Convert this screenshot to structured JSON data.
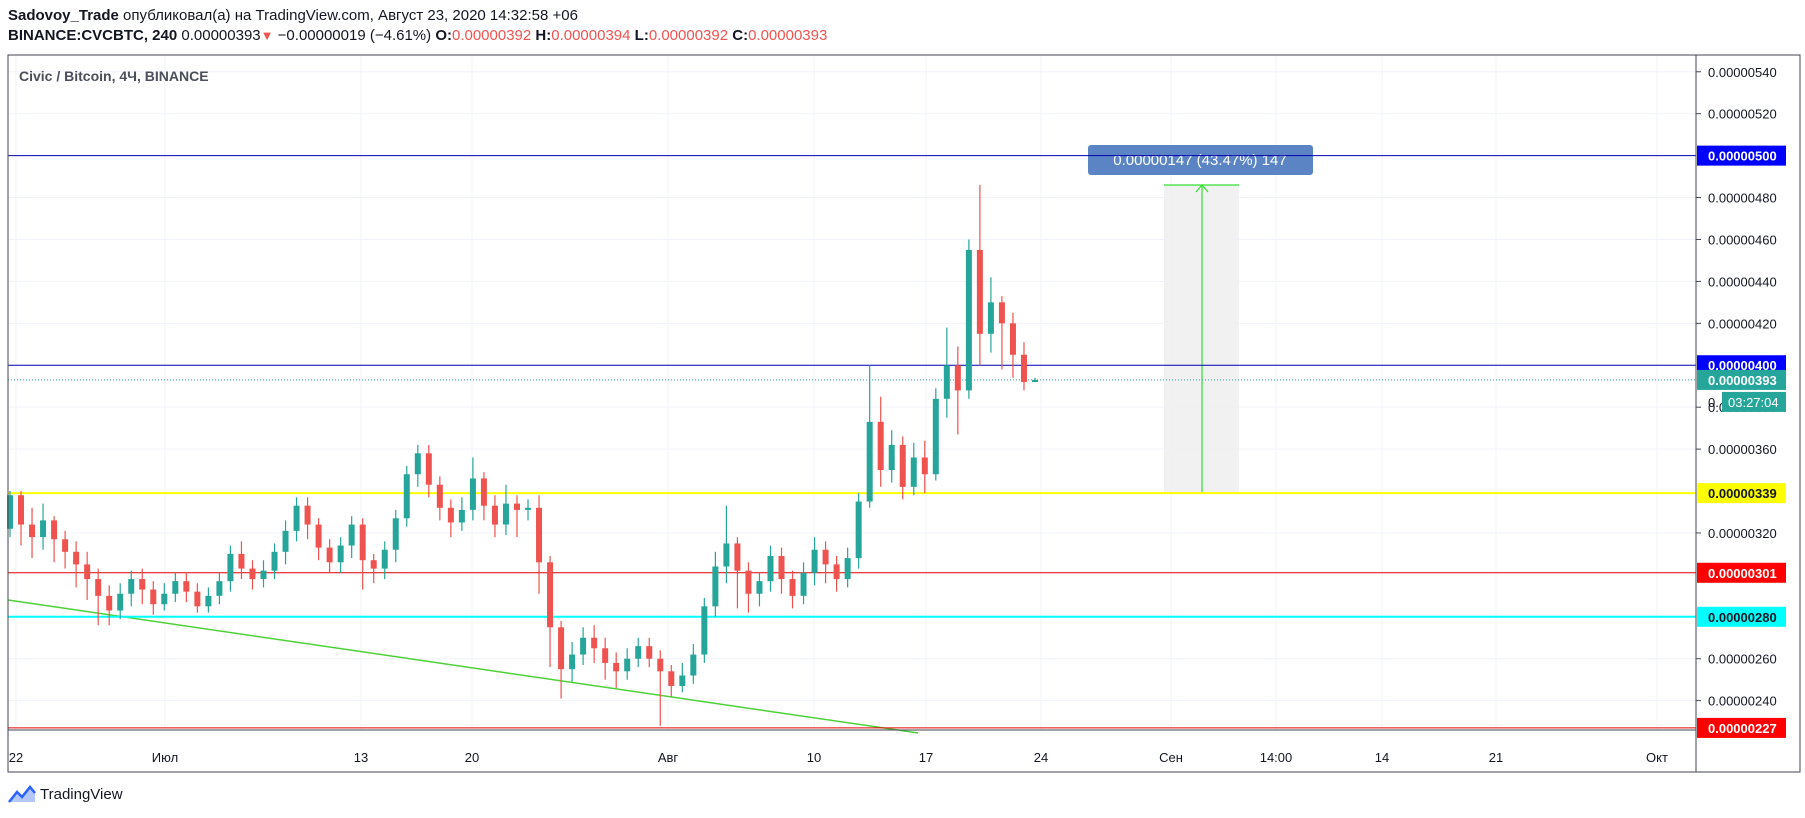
{
  "header": {
    "author": "Sadovoy_Trade",
    "published_text": " опубликовал(а) на TradingView.com, Август 23, 2020 14:32:58 +06",
    "symbol": "BINANCE:CVCBTC, 240",
    "last": "0.00000393",
    "change_arrow": "▼",
    "change": "−0.00000019 (−4.61%)",
    "o_label": "O:",
    "o_value": "0.00000392",
    "h_label": "H:",
    "h_value": "0.00000394",
    "l_label": "L:",
    "l_value": "0.00000392",
    "c_label": "C:",
    "c_value": "0.00000393"
  },
  "footer": {
    "brand": "TradingView",
    "logo_icon": "tradingview-logo-icon"
  },
  "chart_data": {
    "type": "candlestick",
    "title": "Civic / Bitcoin, 4Ч, BINANCE",
    "ylim": [
      2.26e-06,
      5.48e-06
    ],
    "y_ticks": [
      {
        "value": 5.4e-06,
        "label": "0.00000540"
      },
      {
        "value": 5.2e-06,
        "label": "0.00000520"
      },
      {
        "value": 4.8e-06,
        "label": "0.00000480"
      },
      {
        "value": 4.6e-06,
        "label": "0.00000460"
      },
      {
        "value": 4.4e-06,
        "label": "0.00000440"
      },
      {
        "value": 4.2e-06,
        "label": "0.00000420"
      },
      {
        "value": 3.8e-06,
        "label": "0.00000380"
      },
      {
        "value": 3.6e-06,
        "label": "0.00000360"
      },
      {
        "value": 3.2e-06,
        "label": "0.00000320"
      },
      {
        "value": 2.6e-06,
        "label": "0.00000260"
      },
      {
        "value": 2.4e-06,
        "label": "0.00000240"
      }
    ],
    "x_ticks": [
      "22",
      "Июл",
      "13",
      "20",
      "Авг",
      "10",
      "17",
      "24",
      "Сен",
      "14:00",
      "14",
      "21",
      "Окт"
    ],
    "horizontal_levels": [
      {
        "value": 5e-06,
        "label": "0.00000500",
        "color": "#0000b0",
        "label_bg": "#0000ff",
        "label_color": "#ffffff",
        "width": 1
      },
      {
        "value": 4e-06,
        "label": "0.00000400",
        "color": "#0000b0",
        "label_bg": "#0000ff",
        "label_color": "#ffffff",
        "width": 1
      },
      {
        "value": 3.39e-06,
        "label": "0.00000339",
        "color": "#ffff00",
        "label_bg": "#ffff00",
        "label_color": "#131722",
        "width": 2
      },
      {
        "value": 3.01e-06,
        "label": "0.00000301",
        "color": "#e00000",
        "label_bg": "#ff0000",
        "label_color": "#ffffff",
        "width": 1
      },
      {
        "value": 2.8e-06,
        "label": "0.00000280",
        "color": "#00ffff",
        "label_bg": "#00ffff",
        "label_color": "#131722",
        "width": 2
      },
      {
        "value": 2.27e-06,
        "label": "0.00000227",
        "color": "#e00000",
        "label_bg": "#ff0000",
        "label_color": "#ffffff",
        "width": 1
      }
    ],
    "last_price": {
      "value": 3.93e-06,
      "label": "0.00000393",
      "countdown": "03:27:04",
      "color": "#26a69a",
      "partial_tick": "0."
    },
    "measure": {
      "text": "0.00000147 (43.47%) 147",
      "from": 3.39e-06,
      "to": 4.86e-06
    },
    "trendline_color": "#4cd137",
    "up_color": "#26a69a",
    "down_color": "#ef5350",
    "candles": [
      [
        3.22e-06,
        3.38e-06,
        3.4e-06,
        3.18e-06
      ],
      [
        3.38e-06,
        3.24e-06,
        3.4e-06,
        3.14e-06
      ],
      [
        3.24e-06,
        3.18e-06,
        3.32e-06,
        3.08e-06
      ],
      [
        3.18e-06,
        3.26e-06,
        3.34e-06,
        3.12e-06
      ],
      [
        3.26e-06,
        3.17e-06,
        3.28e-06,
        3.06e-06
      ],
      [
        3.17e-06,
        3.11e-06,
        3.21e-06,
        3.03e-06
      ],
      [
        3.11e-06,
        3.05e-06,
        3.16e-06,
        2.94e-06
      ],
      [
        3.05e-06,
        2.98e-06,
        3.11e-06,
        2.88e-06
      ],
      [
        2.98e-06,
        2.9e-06,
        3.03e-06,
        2.76e-06
      ],
      [
        2.9e-06,
        2.83e-06,
        2.95e-06,
        2.76e-06
      ],
      [
        2.83e-06,
        2.91e-06,
        2.96e-06,
        2.79e-06
      ],
      [
        2.91e-06,
        2.98e-06,
        3.02e-06,
        2.85e-06
      ],
      [
        2.98e-06,
        2.93e-06,
        3.03e-06,
        2.86e-06
      ],
      [
        2.93e-06,
        2.86e-06,
        2.97e-06,
        2.81e-06
      ],
      [
        2.86e-06,
        2.91e-06,
        2.96e-06,
        2.83e-06
      ],
      [
        2.91e-06,
        2.97e-06,
        3.01e-06,
        2.87e-06
      ],
      [
        2.97e-06,
        2.92e-06,
        3.01e-06,
        2.87e-06
      ],
      [
        2.92e-06,
        2.85e-06,
        2.96e-06,
        2.82e-06
      ],
      [
        2.85e-06,
        2.9e-06,
        2.94e-06,
        2.82e-06
      ],
      [
        2.9e-06,
        2.97e-06,
        3.01e-06,
        2.86e-06
      ],
      [
        2.97e-06,
        3.1e-06,
        3.14e-06,
        2.92e-06
      ],
      [
        3.1e-06,
        3.03e-06,
        3.16e-06,
        2.98e-06
      ],
      [
        3.03e-06,
        2.98e-06,
        3.07e-06,
        2.93e-06
      ],
      [
        2.98e-06,
        3.02e-06,
        3.07e-06,
        2.94e-06
      ],
      [
        3.02e-06,
        3.11e-06,
        3.15e-06,
        2.98e-06
      ],
      [
        3.11e-06,
        3.21e-06,
        3.26e-06,
        3.05e-06
      ],
      [
        3.21e-06,
        3.33e-06,
        3.37e-06,
        3.16e-06
      ],
      [
        3.33e-06,
        3.24e-06,
        3.37e-06,
        3.17e-06
      ],
      [
        3.24e-06,
        3.13e-06,
        3.27e-06,
        3.07e-06
      ],
      [
        3.13e-06,
        3.06e-06,
        3.17e-06,
        3.01e-06
      ],
      [
        3.06e-06,
        3.14e-06,
        3.18e-06,
        3.01e-06
      ],
      [
        3.14e-06,
        3.24e-06,
        3.28e-06,
        3.08e-06
      ],
      [
        3.24e-06,
        3.07e-06,
        3.27e-06,
        2.93e-06
      ],
      [
        3.07e-06,
        3.03e-06,
        3.1e-06,
        2.96e-06
      ],
      [
        3.03e-06,
        3.12e-06,
        3.16e-06,
        2.98e-06
      ],
      [
        3.12e-06,
        3.27e-06,
        3.31e-06,
        3.06e-06
      ],
      [
        3.27e-06,
        3.48e-06,
        3.52e-06,
        3.23e-06
      ],
      [
        3.48e-06,
        3.58e-06,
        3.62e-06,
        3.42e-06
      ],
      [
        3.58e-06,
        3.43e-06,
        3.62e-06,
        3.37e-06
      ],
      [
        3.43e-06,
        3.32e-06,
        3.47e-06,
        3.26e-06
      ],
      [
        3.32e-06,
        3.25e-06,
        3.36e-06,
        3.18e-06
      ],
      [
        3.25e-06,
        3.31e-06,
        3.37e-06,
        3.21e-06
      ],
      [
        3.31e-06,
        3.46e-06,
        3.56e-06,
        3.26e-06
      ],
      [
        3.46e-06,
        3.33e-06,
        3.49e-06,
        3.26e-06
      ],
      [
        3.33e-06,
        3.24e-06,
        3.38e-06,
        3.18e-06
      ],
      [
        3.24e-06,
        3.34e-06,
        3.43e-06,
        3.19e-06
      ],
      [
        3.34e-06,
        3.31e-06,
        3.38e-06,
        3.18e-06
      ],
      [
        3.31e-06,
        3.32e-06,
        3.36e-06,
        3.26e-06
      ],
      [
        3.32e-06,
        3.06e-06,
        3.38e-06,
        2.91e-06
      ],
      [
        3.06e-06,
        2.75e-06,
        3.09e-06,
        2.56e-06
      ],
      [
        2.75e-06,
        2.55e-06,
        2.78e-06,
        2.41e-06
      ],
      [
        2.55e-06,
        2.62e-06,
        2.68e-06,
        2.49e-06
      ],
      [
        2.62e-06,
        2.7e-06,
        2.75e-06,
        2.57e-06
      ],
      [
        2.7e-06,
        2.65e-06,
        2.76e-06,
        2.58e-06
      ],
      [
        2.65e-06,
        2.58e-06,
        2.7e-06,
        2.5e-06
      ],
      [
        2.58e-06,
        2.54e-06,
        2.63e-06,
        2.46e-06
      ],
      [
        2.54e-06,
        2.6e-06,
        2.65e-06,
        2.5e-06
      ],
      [
        2.6e-06,
        2.66e-06,
        2.7e-06,
        2.56e-06
      ],
      [
        2.66e-06,
        2.6e-06,
        2.7e-06,
        2.56e-06
      ],
      [
        2.6e-06,
        2.54e-06,
        2.64e-06,
        2.28e-06
      ],
      [
        2.54e-06,
        2.47e-06,
        2.57e-06,
        2.42e-06
      ],
      [
        2.47e-06,
        2.52e-06,
        2.58e-06,
        2.44e-06
      ],
      [
        2.52e-06,
        2.62e-06,
        2.67e-06,
        2.48e-06
      ],
      [
        2.62e-06,
        2.85e-06,
        2.89e-06,
        2.58e-06
      ],
      [
        2.85e-06,
        3.04e-06,
        3.11e-06,
        2.8e-06
      ],
      [
        3.04e-06,
        3.15e-06,
        3.33e-06,
        2.96e-06
      ],
      [
        3.15e-06,
        3.02e-06,
        3.18e-06,
        2.84e-06
      ],
      [
        3.02e-06,
        2.91e-06,
        3.06e-06,
        2.82e-06
      ],
      [
        2.91e-06,
        2.97e-06,
        3.01e-06,
        2.85e-06
      ],
      [
        2.97e-06,
        3.09e-06,
        3.14e-06,
        2.92e-06
      ],
      [
        3.09e-06,
        2.98e-06,
        3.13e-06,
        2.91e-06
      ],
      [
        2.98e-06,
        2.9e-06,
        3.02e-06,
        2.84e-06
      ],
      [
        2.9e-06,
        3.01e-06,
        3.06e-06,
        2.86e-06
      ],
      [
        3.01e-06,
        3.12e-06,
        3.18e-06,
        2.95e-06
      ],
      [
        3.12e-06,
        3.05e-06,
        3.16e-06,
        2.96e-06
      ],
      [
        3.05e-06,
        2.98e-06,
        3.09e-06,
        2.92e-06
      ],
      [
        2.98e-06,
        3.08e-06,
        3.13e-06,
        2.94e-06
      ],
      [
        3.08e-06,
        3.35e-06,
        3.39e-06,
        3.03e-06
      ],
      [
        3.35e-06,
        3.73e-06,
        4e-06,
        3.32e-06
      ],
      [
        3.73e-06,
        3.5e-06,
        3.85e-06,
        3.42e-06
      ],
      [
        3.5e-06,
        3.62e-06,
        3.69e-06,
        3.44e-06
      ],
      [
        3.62e-06,
        3.42e-06,
        3.66e-06,
        3.36e-06
      ],
      [
        3.42e-06,
        3.56e-06,
        3.63e-06,
        3.38e-06
      ],
      [
        3.56e-06,
        3.48e-06,
        3.64e-06,
        3.39e-06
      ],
      [
        3.48e-06,
        3.84e-06,
        3.89e-06,
        3.45e-06
      ],
      [
        3.84e-06,
        4e-06,
        4.18e-06,
        3.75e-06
      ],
      [
        4e-06,
        3.88e-06,
        4.09e-06,
        3.67e-06
      ],
      [
        3.88e-06,
        4.55e-06,
        4.6e-06,
        3.84e-06
      ],
      [
        4.55e-06,
        4.15e-06,
        4.86e-06,
        4e-06
      ],
      [
        4.15e-06,
        4.3e-06,
        4.42e-06,
        4.06e-06
      ],
      [
        4.3e-06,
        4.2e-06,
        4.33e-06,
        3.98e-06
      ],
      [
        4.2e-06,
        4.05e-06,
        4.25e-06,
        3.94e-06
      ],
      [
        4.05e-06,
        3.92e-06,
        4.11e-06,
        3.88e-06
      ],
      [
        3.92e-06,
        3.93e-06,
        3.94e-06,
        3.92e-06
      ]
    ]
  }
}
